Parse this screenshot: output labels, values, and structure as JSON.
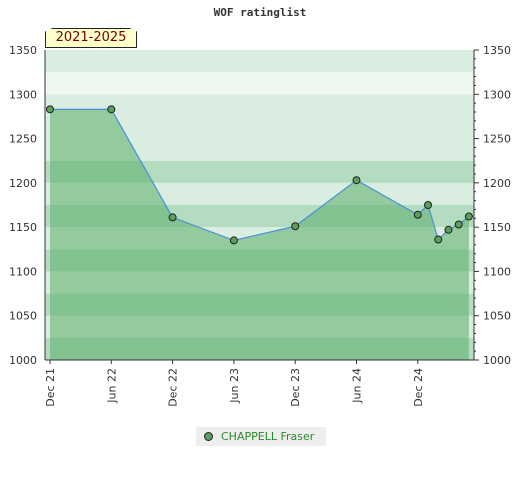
{
  "chart_data": {
    "type": "area",
    "title": "WOF ratinglist",
    "period_label": "2021-2025",
    "xlabel": "",
    "ylabel": "",
    "ylim": [
      1000,
      1350
    ],
    "yticks": [
      1000,
      1050,
      1100,
      1150,
      1200,
      1250,
      1300,
      1350
    ],
    "x_tick_labels": [
      "Dec 21",
      "Jun 22",
      "Dec 22",
      "Jun 23",
      "Dec 23",
      "Jun 24",
      "Dec 24"
    ],
    "x_tick_positions": [
      0,
      6,
      12,
      18,
      24,
      30,
      36
    ],
    "xlim": [
      0,
      41.5
    ],
    "grid": true,
    "legend_position": "bottom",
    "series": [
      {
        "name": "CHAPPELL Fraser",
        "x": [
          0,
          6,
          12,
          18,
          24,
          30,
          36,
          37,
          38,
          39,
          40,
          41
        ],
        "values": [
          1283,
          1283,
          1161,
          1135,
          1151,
          1203,
          1164,
          1175,
          1136,
          1147,
          1153,
          1162
        ]
      }
    ]
  },
  "colors": {
    "line": "#4a8fd8",
    "fill": "#5aaf6a",
    "marker": "#5aa05a",
    "band_dark": "#b4dcc0",
    "band_light": "#d9eee0",
    "band_lightest": "#eef7f0",
    "legend_text": "#2a8a2a"
  }
}
